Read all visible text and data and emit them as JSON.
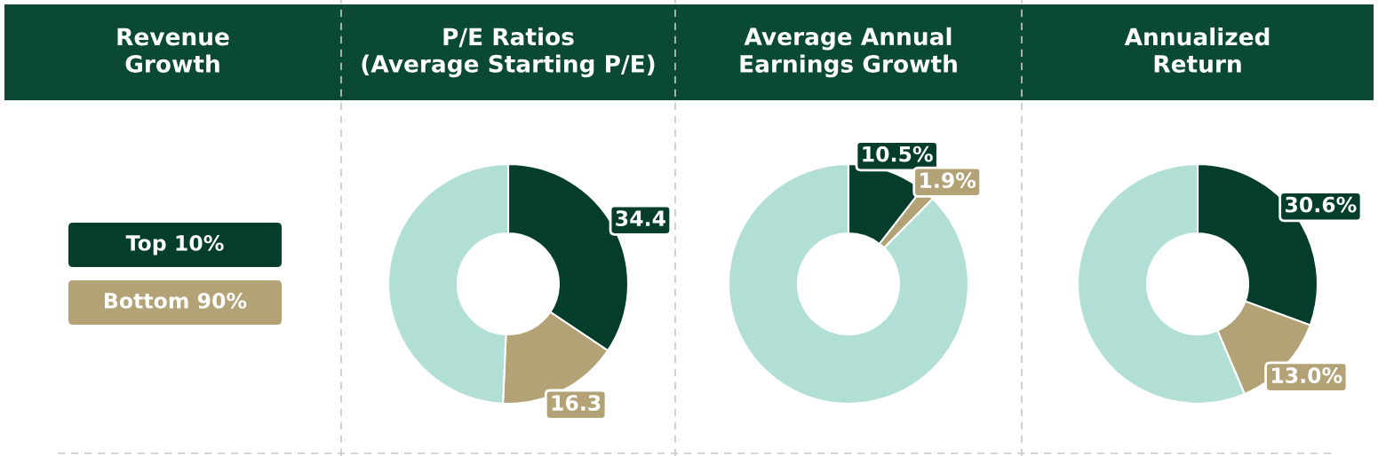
{
  "chart_data": [
    {
      "type": "other",
      "title": "Revenue\nGrowth",
      "categories": [
        "Top 10%",
        "Bottom 90%"
      ],
      "colors": [
        "#053d2c",
        "#b3a276"
      ]
    },
    {
      "type": "donut",
      "title": "P/E Ratios\n(Average Starting P/E)",
      "categories": [
        null,
        null,
        null
      ],
      "values": [
        34.4,
        16.3,
        49.3
      ],
      "colors": [
        "#053d2c",
        "#b3a276",
        "#b2dfd5"
      ],
      "value_labels": [
        "34.4",
        "16.3",
        null
      ]
    },
    {
      "type": "donut",
      "title": "Average Annual\nEarnings Growth",
      "categories": [
        null,
        null,
        null
      ],
      "values": [
        10.5,
        1.9,
        87.6
      ],
      "colors": [
        "#053d2c",
        "#b3a276",
        "#b2dfd5"
      ],
      "value_labels": [
        "10.5%",
        "1.9%",
        null
      ]
    },
    {
      "type": "donut",
      "title": "Annualized\nReturn",
      "categories": [
        null,
        null,
        null
      ],
      "values": [
        30.6,
        13.0,
        56.4
      ],
      "colors": [
        "#053d2c",
        "#b3a276",
        "#b2dfd5"
      ],
      "value_labels": [
        "30.6%",
        "13.0%",
        null
      ]
    }
  ]
}
